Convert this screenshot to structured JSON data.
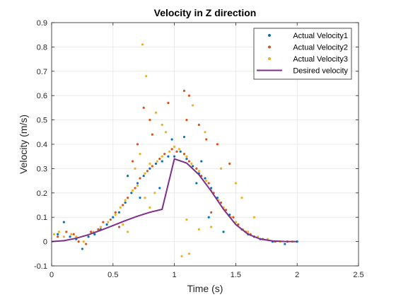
{
  "chart_data": {
    "type": "scatter",
    "title": "Velocity in Z direction",
    "xlabel": "Time (s)",
    "ylabel": "Velocity (m/s)",
    "xlim": [
      0,
      2.5
    ],
    "ylim": [
      -0.1,
      0.9
    ],
    "xticks": [
      0,
      0.5,
      1,
      1.5,
      2,
      2.5
    ],
    "xtick_labels": [
      "0",
      "0.5",
      "1",
      "1.5",
      "2",
      "2.5"
    ],
    "yticks": [
      -0.1,
      0,
      0.1,
      0.2,
      0.3,
      0.4,
      0.5,
      0.6,
      0.7,
      0.8,
      0.9
    ],
    "ytick_labels": [
      "-0.1",
      "0",
      "0.1",
      "0.2",
      "0.3",
      "0.4",
      "0.5",
      "0.6",
      "0.7",
      "0.8",
      "0.9"
    ],
    "grid": true,
    "legend_position": "top-right",
    "series": [
      {
        "name": "Actual Velocity1",
        "kind": "scatter",
        "color": "#0072BD",
        "points": [
          [
            0.05,
            0.03
          ],
          [
            0.1,
            0.08
          ],
          [
            0.15,
            0.02
          ],
          [
            0.2,
            0.01
          ],
          [
            0.25,
            -0.03
          ],
          [
            0.3,
            0.02
          ],
          [
            0.35,
            0.03
          ],
          [
            0.4,
            0.05
          ],
          [
            0.45,
            0.07
          ],
          [
            0.5,
            0.1
          ],
          [
            0.55,
            0.12
          ],
          [
            0.6,
            0.16
          ],
          [
            0.65,
            0.2
          ],
          [
            0.7,
            0.24
          ],
          [
            0.75,
            0.27
          ],
          [
            0.8,
            0.3
          ],
          [
            0.85,
            0.32
          ],
          [
            0.9,
            0.33
          ],
          [
            0.95,
            0.35
          ],
          [
            1.0,
            0.35
          ],
          [
            1.05,
            0.37
          ],
          [
            1.1,
            0.34
          ],
          [
            1.15,
            0.31
          ],
          [
            1.2,
            0.28
          ],
          [
            1.25,
            0.26
          ],
          [
            1.3,
            0.22
          ],
          [
            1.35,
            0.18
          ],
          [
            1.4,
            0.14
          ],
          [
            1.45,
            0.11
          ],
          [
            1.5,
            0.08
          ],
          [
            1.55,
            0.05
          ],
          [
            1.6,
            0.03
          ],
          [
            1.65,
            0.02
          ],
          [
            1.7,
            0.01
          ],
          [
            1.8,
            0.0
          ],
          [
            1.9,
            -0.01
          ],
          [
            2.0,
            0.0
          ],
          [
            0.62,
            0.27
          ],
          [
            0.72,
            0.18
          ],
          [
            0.98,
            0.42
          ],
          [
            1.08,
            0.43
          ],
          [
            1.18,
            0.24
          ],
          [
            1.28,
            0.1
          ],
          [
            1.4,
            0.04
          ],
          [
            0.88,
            0.22
          ],
          [
            1.22,
            0.33
          ]
        ]
      },
      {
        "name": "Actual Velocity2",
        "kind": "scatter",
        "color": "#D95319",
        "points": [
          [
            0.05,
            0.02
          ],
          [
            0.12,
            0.04
          ],
          [
            0.18,
            0.03
          ],
          [
            0.22,
            0.0
          ],
          [
            0.28,
            -0.01
          ],
          [
            0.32,
            0.04
          ],
          [
            0.38,
            0.05
          ],
          [
            0.42,
            0.08
          ],
          [
            0.48,
            0.09
          ],
          [
            0.52,
            0.12
          ],
          [
            0.58,
            0.15
          ],
          [
            0.62,
            0.18
          ],
          [
            0.68,
            0.22
          ],
          [
            0.72,
            0.26
          ],
          [
            0.78,
            0.29
          ],
          [
            0.82,
            0.31
          ],
          [
            0.88,
            0.34
          ],
          [
            0.92,
            0.36
          ],
          [
            0.98,
            0.38
          ],
          [
            1.02,
            0.37
          ],
          [
            1.08,
            0.36
          ],
          [
            1.12,
            0.33
          ],
          [
            1.18,
            0.3
          ],
          [
            1.22,
            0.27
          ],
          [
            1.28,
            0.24
          ],
          [
            1.32,
            0.2
          ],
          [
            1.38,
            0.16
          ],
          [
            1.42,
            0.13
          ],
          [
            1.48,
            0.1
          ],
          [
            1.52,
            0.07
          ],
          [
            1.58,
            0.04
          ],
          [
            1.62,
            0.03
          ],
          [
            1.72,
            0.01
          ],
          [
            1.82,
            0.0
          ],
          [
            1.92,
            0.0
          ],
          [
            0.75,
            0.55
          ],
          [
            0.8,
            0.5
          ],
          [
            0.95,
            0.57
          ],
          [
            1.08,
            0.62
          ],
          [
            1.12,
            0.6
          ],
          [
            1.2,
            0.48
          ],
          [
            1.35,
            0.4
          ],
          [
            1.45,
            0.32
          ],
          [
            0.7,
            0.4
          ],
          [
            0.66,
            0.33
          ],
          [
            1.3,
            0.12
          ],
          [
            0.55,
            0.06
          ],
          [
            0.82,
            0.44
          ],
          [
            1.1,
            0.5
          ],
          [
            1.26,
            0.42
          ]
        ]
      },
      {
        "name": "Actual Velocity3",
        "kind": "scatter",
        "color": "#EDB120",
        "points": [
          [
            0.02,
            0.03
          ],
          [
            0.06,
            0.04
          ],
          [
            0.1,
            0.02
          ],
          [
            0.16,
            0.03
          ],
          [
            0.2,
            0.02
          ],
          [
            0.26,
            0.0
          ],
          [
            0.34,
            0.04
          ],
          [
            0.4,
            0.06
          ],
          [
            0.46,
            0.08
          ],
          [
            0.52,
            0.11
          ],
          [
            0.56,
            0.14
          ],
          [
            0.6,
            0.17
          ],
          [
            0.66,
            0.21
          ],
          [
            0.7,
            0.23
          ],
          [
            0.76,
            0.28
          ],
          [
            0.8,
            0.32
          ],
          [
            0.86,
            0.33
          ],
          [
            0.9,
            0.35
          ],
          [
            0.96,
            0.37
          ],
          [
            1.0,
            0.39
          ],
          [
            1.04,
            0.38
          ],
          [
            1.1,
            0.35
          ],
          [
            1.14,
            0.32
          ],
          [
            1.2,
            0.29
          ],
          [
            1.26,
            0.25
          ],
          [
            1.3,
            0.21
          ],
          [
            1.36,
            0.17
          ],
          [
            1.4,
            0.14
          ],
          [
            1.46,
            0.1
          ],
          [
            1.5,
            0.08
          ],
          [
            1.56,
            0.05
          ],
          [
            1.6,
            0.04
          ],
          [
            1.68,
            0.02
          ],
          [
            1.76,
            0.01
          ],
          [
            1.86,
            0.0
          ],
          [
            1.96,
            0.0
          ],
          [
            0.74,
            0.81
          ],
          [
            0.77,
            0.68
          ],
          [
            0.85,
            0.53
          ],
          [
            0.9,
            0.48
          ],
          [
            0.93,
            0.45
          ],
          [
            0.76,
            0.18
          ],
          [
            0.8,
            0.14
          ],
          [
            0.84,
            0.2
          ],
          [
            1.1,
            0.09
          ],
          [
            1.06,
            -0.06
          ],
          [
            1.12,
            -0.05
          ],
          [
            1.2,
            0.05
          ],
          [
            1.3,
            0.06
          ],
          [
            0.58,
            0.07
          ],
          [
            0.62,
            0.04
          ],
          [
            1.15,
            0.56
          ],
          [
            1.25,
            0.45
          ],
          [
            1.38,
            0.3
          ],
          [
            1.5,
            0.24
          ],
          [
            1.55,
            0.18
          ],
          [
            1.65,
            0.1
          ],
          [
            0.68,
            0.3
          ],
          [
            0.72,
            0.36
          ]
        ]
      },
      {
        "name": "Desired velocity",
        "kind": "line",
        "color": "#7E2F8E",
        "x": [
          0,
          0.1,
          0.2,
          0.3,
          0.4,
          0.5,
          0.6,
          0.7,
          0.8,
          0.9,
          1.0,
          1.1,
          1.2,
          1.3,
          1.4,
          1.5,
          1.6,
          1.7,
          1.8,
          1.9,
          2.0
        ],
        "y": [
          0.0,
          0.0035,
          0.0135,
          0.0282,
          0.0462,
          0.0659,
          0.0858,
          0.1045,
          0.1204,
          0.1326,
          0.34,
          0.3225,
          0.2751,
          0.2072,
          0.1328,
          0.07,
          0.0303,
          0.0104,
          0.0025,
          0.0003,
          0.0
        ]
      }
    ]
  }
}
